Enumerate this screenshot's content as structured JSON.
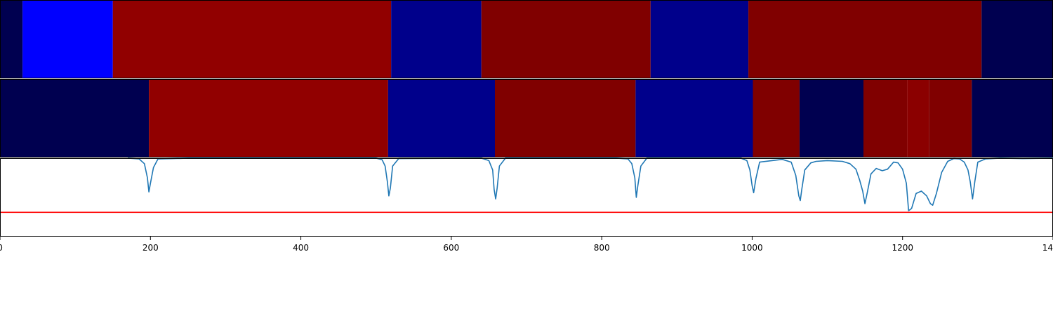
{
  "chart_data": {
    "type": "heatmap",
    "xlim": [
      0,
      1400
    ],
    "x_ticks": [
      0,
      200,
      400,
      600,
      800,
      1000,
      1200,
      1400
    ],
    "x_tick_labels": [
      "0",
      "200",
      "400",
      "600",
      "800",
      "1000",
      "1200",
      "1400"
    ],
    "segment_rows": [
      {
        "segments": [
          {
            "start": 0,
            "end": 30,
            "color": "#000050"
          },
          {
            "start": 30,
            "end": 150,
            "color": "#0000ff"
          },
          {
            "start": 150,
            "end": 520,
            "color": "#910000"
          },
          {
            "start": 520,
            "end": 640,
            "color": "#00008b"
          },
          {
            "start": 640,
            "end": 865,
            "color": "#800000"
          },
          {
            "start": 865,
            "end": 995,
            "color": "#00008b"
          },
          {
            "start": 995,
            "end": 1305,
            "color": "#800000"
          },
          {
            "start": 1305,
            "end": 1400,
            "color": "#000050"
          }
        ]
      },
      {
        "segments": [
          {
            "start": 0,
            "end": 198,
            "color": "#000050"
          },
          {
            "start": 198,
            "end": 516,
            "color": "#910000"
          },
          {
            "start": 516,
            "end": 658,
            "color": "#00008b"
          },
          {
            "start": 658,
            "end": 845,
            "color": "#800000"
          },
          {
            "start": 845,
            "end": 1001,
            "color": "#00008b"
          },
          {
            "start": 1001,
            "end": 1063,
            "color": "#800000"
          },
          {
            "start": 1063,
            "end": 1148,
            "color": "#000050"
          },
          {
            "start": 1148,
            "end": 1206,
            "color": "#800000"
          },
          {
            "start": 1206,
            "end": 1235,
            "color": "#8b0000"
          },
          {
            "start": 1235,
            "end": 1292,
            "color": "#800000"
          },
          {
            "start": 1292,
            "end": 1400,
            "color": "#000050"
          }
        ]
      }
    ],
    "line_series": {
      "color": "#1f77b4",
      "ylim": [
        0,
        1
      ],
      "x": [
        170,
        185,
        192,
        196,
        198,
        200,
        204,
        210,
        230,
        250,
        500,
        508,
        512,
        515,
        517,
        519,
        522,
        530,
        640,
        650,
        655,
        657,
        659,
        661,
        664,
        672,
        820,
        835,
        840,
        844,
        846,
        848,
        852,
        860,
        985,
        993,
        997,
        1000,
        1002,
        1005,
        1010,
        1040,
        1052,
        1058,
        1062,
        1064,
        1066,
        1070,
        1078,
        1085,
        1100,
        1120,
        1130,
        1138,
        1143,
        1147,
        1150,
        1153,
        1158,
        1165,
        1173,
        1180,
        1188,
        1194,
        1200,
        1205,
        1208,
        1212,
        1218,
        1225,
        1232,
        1237,
        1240,
        1245,
        1252,
        1260,
        1268,
        1276,
        1282,
        1287,
        1290,
        1293,
        1296,
        1300,
        1310,
        1330,
        1360,
        1400
      ],
      "y": [
        1.0,
        0.99,
        0.93,
        0.75,
        0.57,
        0.68,
        0.88,
        0.99,
        0.995,
        1.0,
        1.0,
        0.98,
        0.9,
        0.7,
        0.52,
        0.62,
        0.9,
        0.995,
        1.0,
        0.97,
        0.85,
        0.6,
        0.48,
        0.62,
        0.9,
        1.0,
        1.0,
        0.99,
        0.93,
        0.75,
        0.5,
        0.65,
        0.9,
        1.0,
        1.0,
        0.97,
        0.85,
        0.65,
        0.56,
        0.74,
        0.95,
        0.985,
        0.95,
        0.78,
        0.52,
        0.46,
        0.6,
        0.85,
        0.94,
        0.96,
        0.97,
        0.96,
        0.93,
        0.86,
        0.72,
        0.58,
        0.42,
        0.56,
        0.8,
        0.87,
        0.84,
        0.86,
        0.95,
        0.94,
        0.86,
        0.68,
        0.33,
        0.36,
        0.55,
        0.58,
        0.52,
        0.42,
        0.4,
        0.55,
        0.82,
        0.96,
        0.995,
        0.99,
        0.95,
        0.85,
        0.7,
        0.48,
        0.7,
        0.95,
        0.99,
        1.0,
        0.995,
        1.0
      ]
    },
    "threshold_line": {
      "y": 0.31,
      "color": "#ff0000"
    }
  }
}
